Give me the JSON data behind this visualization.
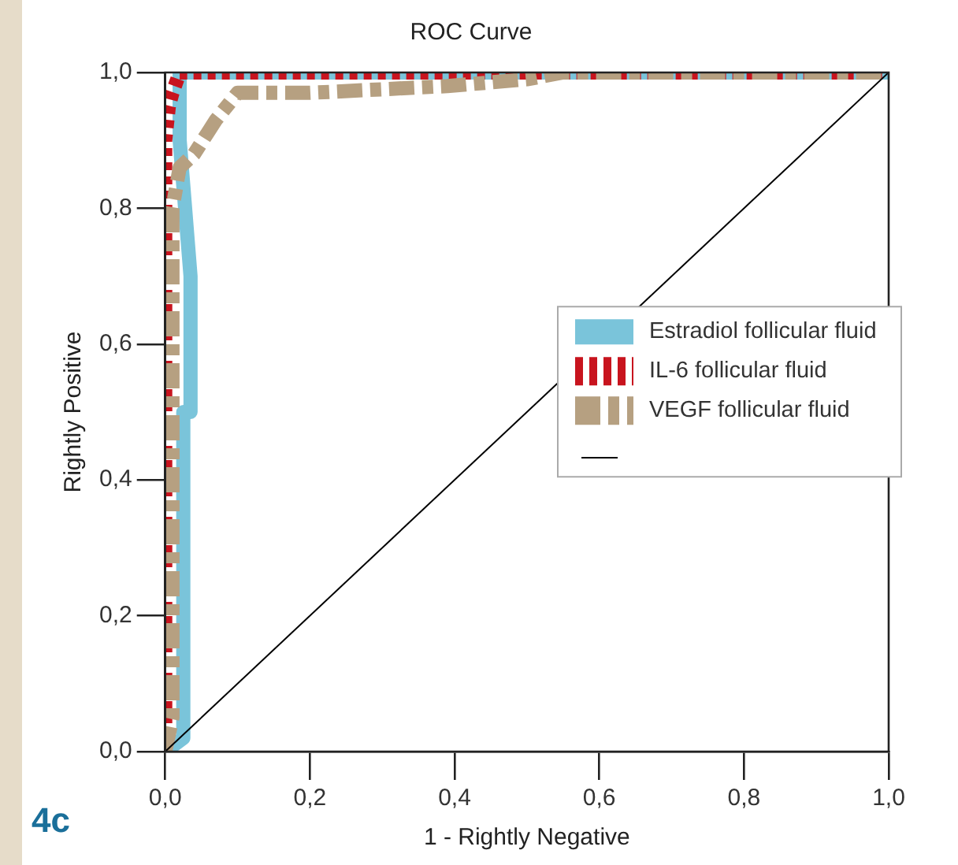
{
  "chart_data": {
    "type": "line",
    "title": "ROC Curve",
    "xlabel": "1 - Rightly Negative",
    "ylabel": "Rightly Positive",
    "annotations": [
      "4c"
    ],
    "xlim": [
      0,
      1
    ],
    "ylim": [
      0,
      1
    ],
    "xticks": [
      {
        "value": 0,
        "label": "0,0"
      },
      {
        "value": 0.2,
        "label": "0,2"
      },
      {
        "value": 0.4,
        "label": "0,4"
      },
      {
        "value": 0.6,
        "label": "0,6"
      },
      {
        "value": 0.8,
        "label": "0,8"
      },
      {
        "value": 1,
        "label": "1,0"
      }
    ],
    "yticks": [
      {
        "value": 0,
        "label": "0,0"
      },
      {
        "value": 0.2,
        "label": "0,2"
      },
      {
        "value": 0.4,
        "label": "0,4"
      },
      {
        "value": 0.6,
        "label": "0,6"
      },
      {
        "value": 0.8,
        "label": "0,8"
      },
      {
        "value": 1,
        "label": "1,0"
      }
    ],
    "grid": false,
    "legend": "right",
    "marker": "none",
    "series": [
      {
        "name": "Estradiol follicular fluid",
        "color": "#7ac4da",
        "line_style": "solid",
        "x": [
          0,
          0.025,
          0.025,
          0.035,
          0.035,
          0.02,
          0.02,
          1
        ],
        "values": [
          0,
          0.02,
          0.5,
          0.5,
          0.7,
          0.9,
          1,
          1
        ]
      },
      {
        "name": "IL-6 follicular fluid",
        "color": "#c8141e",
        "line_style": "dotted",
        "x": [
          0,
          0,
          0.005,
          0.01,
          0.02,
          1
        ],
        "values": [
          0,
          0.9,
          0.95,
          0.97,
          1,
          1
        ]
      },
      {
        "name": "VEGF follicular fluid",
        "color": "#b6a081",
        "line_style": "dashed",
        "x": [
          0,
          0.01,
          0.01,
          0.02,
          0.04,
          0.07,
          0.1,
          0.2,
          0.39,
          0.5,
          0.55,
          1
        ],
        "values": [
          0,
          0.05,
          0.8,
          0.86,
          0.88,
          0.93,
          0.97,
          0.97,
          0.98,
          0.99,
          1,
          1
        ]
      },
      {
        "color": "#000000",
        "line_style": "solid",
        "x": [
          0,
          1
        ],
        "values": [
          0,
          1
        ]
      }
    ]
  }
}
